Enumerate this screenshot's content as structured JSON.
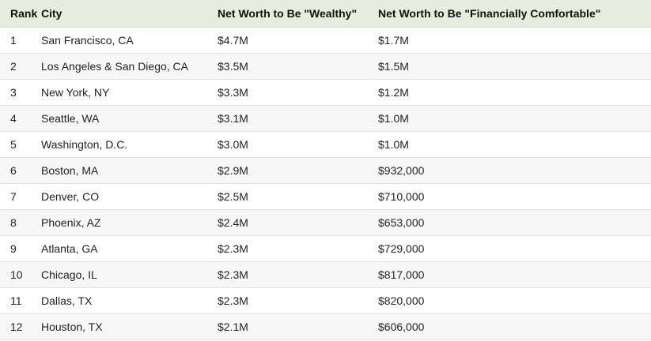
{
  "table": {
    "headers": {
      "rank": "Rank",
      "city": "City",
      "wealthy": "Net Worth to Be \"Wealthy\"",
      "comfortable": "Net Worth to Be \"Financially Comfortable\""
    },
    "rows": [
      {
        "rank": "1",
        "city": "San Francisco, CA",
        "wealthy": "$4.7M",
        "comfortable": "$1.7M"
      },
      {
        "rank": "2",
        "city": "Los Angeles & San Diego, CA",
        "wealthy": "$3.5M",
        "comfortable": "$1.5M"
      },
      {
        "rank": "3",
        "city": "New York, NY",
        "wealthy": "$3.3M",
        "comfortable": "$1.2M"
      },
      {
        "rank": "4",
        "city": "Seattle, WA",
        "wealthy": "$3.1M",
        "comfortable": "$1.0M"
      },
      {
        "rank": "5",
        "city": "Washington, D.C.",
        "wealthy": "$3.0M",
        "comfortable": "$1.0M"
      },
      {
        "rank": "6",
        "city": "Boston, MA",
        "wealthy": "$2.9M",
        "comfortable": "$932,000"
      },
      {
        "rank": "7",
        "city": "Denver, CO",
        "wealthy": "$2.5M",
        "comfortable": "$710,000"
      },
      {
        "rank": "8",
        "city": "Phoenix, AZ",
        "wealthy": "$2.4M",
        "comfortable": "$653,000"
      },
      {
        "rank": "9",
        "city": "Atlanta, GA",
        "wealthy": "$2.3M",
        "comfortable": "$729,000"
      },
      {
        "rank": "10",
        "city": "Chicago, IL",
        "wealthy": "$2.3M",
        "comfortable": "$817,000"
      },
      {
        "rank": "11",
        "city": "Dallas, TX",
        "wealthy": "$2.3M",
        "comfortable": "$820,000"
      },
      {
        "rank": "12",
        "city": "Houston, TX",
        "wealthy": "$2.1M",
        "comfortable": "$606,000"
      }
    ]
  }
}
